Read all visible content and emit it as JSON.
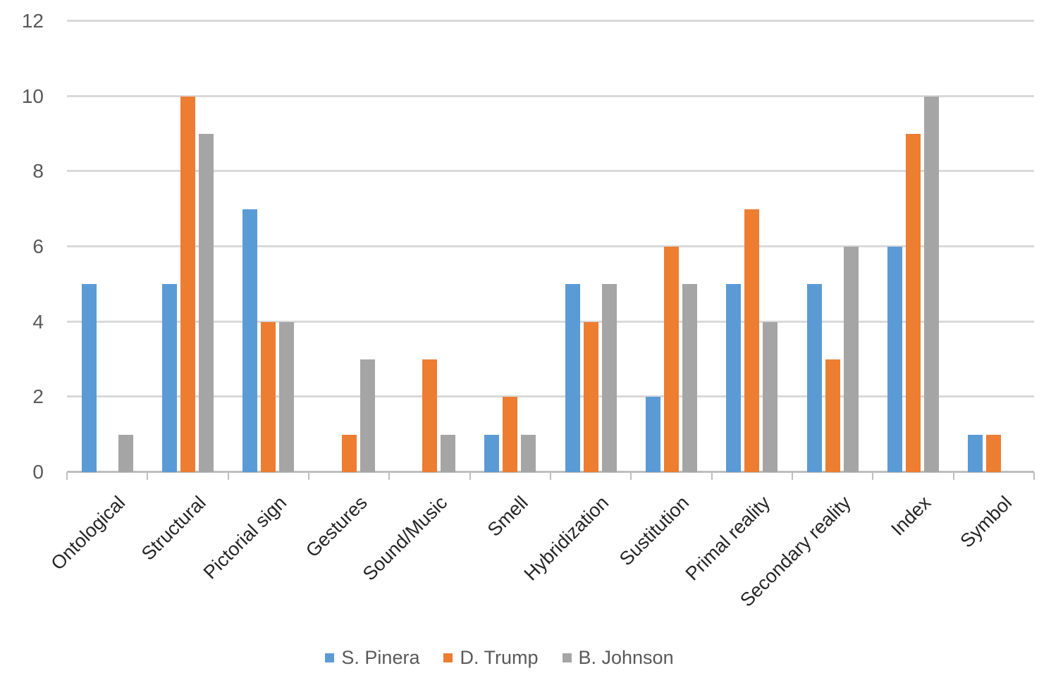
{
  "chart_data": {
    "type": "bar",
    "title": "",
    "xlabel": "",
    "ylabel": "",
    "categories": [
      "Ontological",
      "Structural",
      "Pictorial sign",
      "Gestures",
      "Sound/Music",
      "Smell",
      "Hybridization",
      "Sustitution",
      "Primal reality",
      "Secondary reality",
      "Index",
      "Symbol"
    ],
    "series": [
      {
        "name": "S. Pinera",
        "color": "#5B9BD5",
        "values": [
          5,
          5,
          7,
          0,
          0,
          1,
          5,
          2,
          5,
          5,
          6,
          1
        ]
      },
      {
        "name": "D. Trump",
        "color": "#ED7D31",
        "values": [
          0,
          10,
          4,
          1,
          3,
          2,
          4,
          6,
          7,
          3,
          9,
          1
        ]
      },
      {
        "name": "B. Johnson",
        "color": "#A5A5A5",
        "values": [
          1,
          9,
          4,
          3,
          1,
          1,
          5,
          5,
          4,
          6,
          10,
          0
        ]
      }
    ],
    "ylim": [
      0,
      12
    ],
    "yticks": [
      0,
      2,
      4,
      6,
      8,
      10,
      12
    ],
    "grid": true,
    "legend_position": "bottom",
    "style": {
      "background": "#FFFFFF",
      "gridline_color": "#D9D9D9",
      "axis_line_color": "#BFBFBF",
      "y_tick_label_color": "#595959",
      "x_tick_label_color": "#262626",
      "legend_text_color": "#595959"
    }
  }
}
